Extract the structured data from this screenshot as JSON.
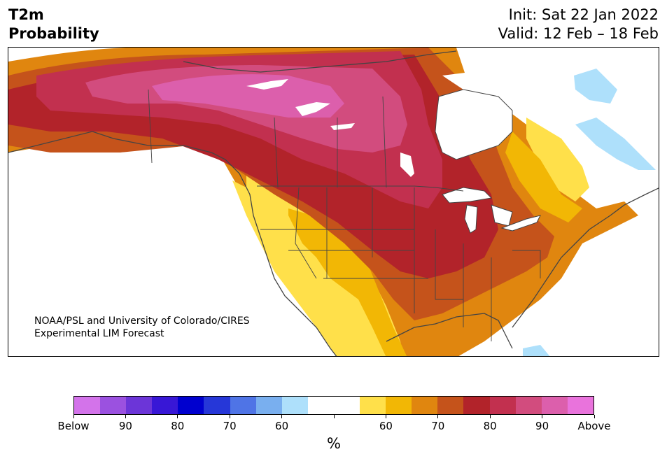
{
  "header": {
    "title_line1": "T2m",
    "title_line2": "Probability",
    "init_label": "Init: Sat 22 Jan 2022",
    "valid_label": "Valid: 12 Feb – 18 Feb"
  },
  "map": {
    "credit_line1": "NOAA/PSL and University of Colorado/CIRES",
    "credit_line2": "Experimental LIM Forecast",
    "region": "north-america"
  },
  "colorbar": {
    "units": "%",
    "colors": [
      "#d373ea",
      "#9b51e0",
      "#6c35d8",
      "#3817d6",
      "#0000cf",
      "#2637d8",
      "#4f74e6",
      "#79afef",
      "#aee0fb",
      "#ffffff",
      "#ffffff",
      "#ffe04a",
      "#f2b705",
      "#e0860f",
      "#c5531b",
      "#b2232a",
      "#c2304f",
      "#d24c7e",
      "#dc5fac",
      "#e973dc"
    ],
    "tick_labels": [
      "Below",
      "90",
      "80",
      "70",
      "60",
      "",
      "60",
      "70",
      "80",
      "90",
      "Above"
    ]
  }
}
